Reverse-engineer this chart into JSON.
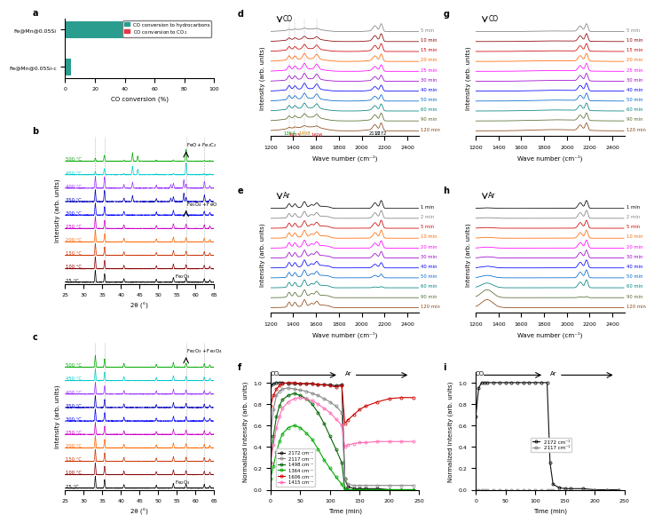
{
  "panel_a": {
    "categories": [
      "Fe@Mn@0.05Si-c",
      "Fe@Mn@0.05Si"
    ],
    "hydrocarbons": [
      4,
      55
    ],
    "co2": [
      0,
      32
    ],
    "hc_color": "#2a9d8f",
    "co2_color": "#e63946",
    "xlabel": "CO conversion (%)",
    "xlim": [
      0,
      100
    ]
  },
  "panel_b": {
    "temps": [
      "25 °C",
      "100 °C",
      "150 °C",
      "200 °C",
      "250 °C",
      "300 °C",
      "350 °C",
      "400 °C",
      "450 °C",
      "500 °C"
    ],
    "colors": [
      "#000000",
      "#8b0000",
      "#cc3300",
      "#ff6600",
      "#cc00cc",
      "#0000ff",
      "#0000bb",
      "#9933ff",
      "#00cccc",
      "#00aa00"
    ],
    "xlabel": "2θ (°)",
    "ylabel": "Intensity (arb. units)",
    "xlim": [
      25,
      65
    ]
  },
  "panel_c": {
    "temps": [
      "25 °C",
      "100 °C",
      "150 °C",
      "200 °C",
      "250 °C",
      "300 °C",
      "350 °C",
      "400 °C",
      "450 °C",
      "500 °C"
    ],
    "colors": [
      "#000000",
      "#8b0000",
      "#cc3300",
      "#ff6600",
      "#cc00cc",
      "#0000ff",
      "#0000bb",
      "#9933ff",
      "#00cccc",
      "#00aa00"
    ],
    "xlabel": "2θ (°)",
    "ylabel": "Intensity (arb. units)",
    "xlim": [
      25,
      65
    ]
  },
  "panel_d": {
    "times": [
      "5 min",
      "10 min",
      "15 min",
      "20 min",
      "25 min",
      "30 min",
      "40 min",
      "50 min",
      "60 min",
      "90 min",
      "120 min"
    ],
    "colors": [
      "#808080",
      "#8b0000",
      "#cc0000",
      "#ff6600",
      "#ff00ff",
      "#9900cc",
      "#0000ff",
      "#0066cc",
      "#008080",
      "#556b2f",
      "#8b4513"
    ],
    "xlabel": "Wave number (cm⁻¹)",
    "ylabel": "Intensity (arb. units)",
    "xlim": [
      1200,
      2500
    ],
    "annotation": "CO"
  },
  "panel_e": {
    "times": [
      "1 min",
      "2 min",
      "5 min",
      "10 min",
      "20 min",
      "30 min",
      "40 min",
      "50 min",
      "60 min",
      "90 min",
      "120 min"
    ],
    "colors": [
      "#000000",
      "#808080",
      "#cc0000",
      "#ff6600",
      "#ff00ff",
      "#9900cc",
      "#0000ff",
      "#0066cc",
      "#008080",
      "#556b2f",
      "#8b4513"
    ],
    "xlabel": "Wave number (cm⁻¹)",
    "ylabel": "Intensity (arb. units)",
    "xlim": [
      1200,
      2500
    ],
    "annotation": "Ar"
  },
  "panel_f": {
    "series_order": [
      "2172 cm⁻¹",
      "2117 cm⁻¹",
      "1498 cm⁻¹",
      "1364 cm⁻¹",
      "1606 cm⁻¹",
      "1415 cm⁻¹"
    ],
    "series": {
      "2172 cm⁻¹": {
        "color": "#111111",
        "x": [
          0,
          5,
          10,
          15,
          20,
          30,
          40,
          50,
          60,
          70,
          80,
          90,
          100,
          110,
          120,
          125,
          130,
          140,
          150,
          160,
          180,
          200,
          220,
          240
        ],
        "y": [
          0.97,
          0.99,
          1.0,
          1.0,
          1.0,
          0.99,
          0.99,
          0.99,
          0.99,
          0.99,
          0.98,
          0.98,
          0.98,
          0.97,
          0.98,
          0.1,
          0.03,
          0.01,
          0.01,
          0.01,
          0.01,
          0.0,
          0.0,
          0.0
        ]
      },
      "2117 cm⁻¹": {
        "color": "#888888",
        "x": [
          0,
          5,
          10,
          15,
          20,
          30,
          40,
          50,
          60,
          70,
          80,
          90,
          100,
          110,
          120,
          125,
          130,
          140,
          150,
          160,
          180,
          200,
          220,
          240
        ],
        "y": [
          0.5,
          0.75,
          0.88,
          0.92,
          0.94,
          0.95,
          0.94,
          0.93,
          0.92,
          0.9,
          0.88,
          0.85,
          0.82,
          0.78,
          0.72,
          0.1,
          0.05,
          0.04,
          0.04,
          0.04,
          0.04,
          0.04,
          0.04,
          0.04
        ]
      },
      "1498 cm⁻¹": {
        "color": "#006600",
        "x": [
          0,
          5,
          10,
          15,
          20,
          30,
          40,
          50,
          60,
          70,
          80,
          90,
          100,
          110,
          120,
          125,
          130,
          140,
          150,
          160,
          180,
          200,
          220,
          240
        ],
        "y": [
          0.25,
          0.5,
          0.68,
          0.78,
          0.84,
          0.88,
          0.9,
          0.88,
          0.85,
          0.8,
          0.72,
          0.62,
          0.5,
          0.38,
          0.25,
          0.01,
          0.0,
          0.0,
          0.0,
          0.0,
          0.0,
          0.0,
          0.0,
          0.0
        ]
      },
      "1364 cm⁻¹": {
        "color": "#00aa00",
        "x": [
          0,
          5,
          10,
          15,
          20,
          30,
          40,
          50,
          60,
          70,
          80,
          90,
          100,
          110,
          120,
          125,
          130,
          140,
          150,
          160,
          180,
          200,
          220,
          240
        ],
        "y": [
          0.1,
          0.22,
          0.35,
          0.45,
          0.52,
          0.58,
          0.6,
          0.58,
          0.53,
          0.47,
          0.38,
          0.28,
          0.2,
          0.12,
          0.05,
          0.0,
          0.0,
          0.0,
          0.0,
          0.0,
          0.0,
          0.0,
          0.0,
          0.0
        ]
      },
      "1606 cm⁻¹": {
        "color": "#cc0000",
        "x": [
          0,
          5,
          10,
          15,
          20,
          30,
          40,
          50,
          60,
          70,
          80,
          90,
          100,
          110,
          120,
          125,
          130,
          140,
          150,
          160,
          180,
          200,
          220,
          240
        ],
        "y": [
          0.78,
          0.88,
          0.94,
          0.97,
          0.99,
          1.0,
          1.0,
          0.99,
          0.99,
          0.99,
          0.98,
          0.98,
          0.97,
          0.96,
          0.97,
          0.62,
          0.65,
          0.7,
          0.75,
          0.78,
          0.82,
          0.85,
          0.86,
          0.86
        ]
      },
      "1415 cm⁻¹": {
        "color": "#ff69b4",
        "x": [
          0,
          5,
          10,
          15,
          20,
          30,
          40,
          50,
          60,
          70,
          80,
          90,
          100,
          110,
          120,
          125,
          130,
          140,
          150,
          160,
          180,
          200,
          220,
          240
        ],
        "y": [
          0.25,
          0.42,
          0.58,
          0.68,
          0.76,
          0.82,
          0.85,
          0.86,
          0.85,
          0.83,
          0.8,
          0.76,
          0.72,
          0.66,
          0.6,
          0.4,
          0.42,
          0.43,
          0.44,
          0.44,
          0.45,
          0.45,
          0.45,
          0.45
        ]
      }
    },
    "xlabel": "Time (min)",
    "ylabel": "Normalized intensity (arb. units)",
    "xlim": [
      0,
      250
    ],
    "ylim": [
      0.0,
      1.1
    ]
  },
  "panel_g": {
    "times": [
      "5 min",
      "10 min",
      "15 min",
      "20 min",
      "25 min",
      "30 min",
      "40 min",
      "50 min",
      "60 min",
      "90 min",
      "120 min"
    ],
    "colors": [
      "#808080",
      "#8b0000",
      "#cc0000",
      "#ff6600",
      "#ff00ff",
      "#9900cc",
      "#0000ff",
      "#0066cc",
      "#008080",
      "#556b2f",
      "#8b4513"
    ],
    "xlabel": "Wave number (cm⁻¹)",
    "ylabel": "Intensity (arb. units)",
    "xlim": [
      1200,
      2500
    ],
    "annotation": "CO"
  },
  "panel_h": {
    "times": [
      "1 min",
      "2 min",
      "5 min",
      "10 min",
      "20 min",
      "30 min",
      "40 min",
      "50 min",
      "60 min",
      "90 min",
      "120 min"
    ],
    "colors": [
      "#000000",
      "#808080",
      "#cc0000",
      "#ff6600",
      "#ff00ff",
      "#9900cc",
      "#0000ff",
      "#0066cc",
      "#008080",
      "#556b2f",
      "#8b4513"
    ],
    "xlabel": "Wave number (cm⁻¹)",
    "ylabel": "Intensity (arb. units)",
    "xlim": [
      1200,
      2500
    ],
    "annotation": "Ar"
  },
  "panel_i": {
    "series_order": [
      "2172 cm⁻¹",
      "2117 cm⁻¹"
    ],
    "series": {
      "2172 cm⁻¹": {
        "color": "#111111",
        "x": [
          0,
          5,
          10,
          15,
          20,
          30,
          40,
          50,
          60,
          70,
          80,
          90,
          100,
          110,
          120,
          125,
          130,
          140,
          150,
          160,
          180,
          200,
          220,
          240
        ],
        "y": [
          0.68,
          0.95,
          1.0,
          1.0,
          1.0,
          1.0,
          1.0,
          1.0,
          1.0,
          1.0,
          1.0,
          1.0,
          1.0,
          1.0,
          1.0,
          0.25,
          0.05,
          0.02,
          0.01,
          0.01,
          0.01,
          0.0,
          0.0,
          0.0
        ]
      },
      "2117 cm⁻¹": {
        "color": "#888888",
        "x": [
          0,
          5,
          10,
          15,
          20,
          30,
          40,
          50,
          60,
          70,
          80,
          90,
          100,
          110,
          120,
          125,
          130,
          140,
          150,
          160,
          180,
          200,
          220,
          240
        ],
        "y": [
          0.0,
          0.0,
          0.0,
          0.0,
          0.0,
          0.0,
          0.0,
          0.0,
          0.0,
          0.0,
          0.0,
          0.0,
          0.0,
          0.0,
          0.0,
          0.0,
          0.0,
          0.0,
          0.0,
          0.0,
          0.0,
          0.0,
          0.0,
          0.0
        ]
      }
    },
    "xlabel": "Time (min)",
    "ylabel": "Normalized intensity (arb. units)",
    "xlim": [
      0,
      250
    ],
    "ylim": [
      0.0,
      1.1
    ]
  }
}
